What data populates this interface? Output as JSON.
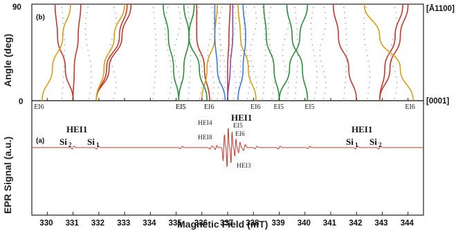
{
  "chart_data": [
    {
      "type": "line",
      "panel": "(b)",
      "xlabel": "",
      "ylabel": "Angle (deg)",
      "xlim": [
        329.4,
        344.6
      ],
      "ylim": [
        0,
        90
      ],
      "yticks": [
        0,
        90
      ],
      "top_right_label": "[Ā1100]",
      "bottom_right_label": "[0001]",
      "series": [
        {
          "color": "#c0392b",
          "points": [
            [
              331.0,
              0
            ],
            [
              330.7,
              30
            ],
            [
              330.4,
              60
            ],
            [
              330.3,
              90
            ]
          ]
        },
        {
          "color": "#c0392b",
          "points": [
            [
              331.0,
              0
            ],
            [
              331.05,
              30
            ],
            [
              331.2,
              60
            ],
            [
              331.3,
              90
            ]
          ]
        },
        {
          "color": "#c0392b",
          "points": [
            [
              331.9,
              0
            ],
            [
              332.3,
              30
            ],
            [
              332.8,
              60
            ],
            [
              333.1,
              90
            ]
          ]
        },
        {
          "color": "#c0392b",
          "points": [
            [
              331.9,
              0
            ],
            [
              332.4,
              30
            ],
            [
              332.9,
              60
            ],
            [
              333.25,
              90
            ]
          ]
        },
        {
          "color": "#c0392b",
          "points": [
            [
              336.3,
              0
            ],
            [
              336.1,
              30
            ],
            [
              335.8,
              60
            ],
            [
              335.8,
              90
            ]
          ]
        },
        {
          "color": "#c0392b",
          "points": [
            [
              337.0,
              0
            ],
            [
              337.0,
              30
            ],
            [
              337.05,
              60
            ],
            [
              337.1,
              90
            ]
          ]
        },
        {
          "color": "#c0392b",
          "points": [
            [
              342.0,
              0
            ],
            [
              341.7,
              30
            ],
            [
              341.3,
              60
            ],
            [
              341.1,
              90
            ]
          ]
        },
        {
          "color": "#c0392b",
          "points": [
            [
              342.9,
              0
            ],
            [
              343.3,
              30
            ],
            [
              343.7,
              60
            ],
            [
              344.0,
              90
            ]
          ]
        },
        {
          "color": "#c0392b",
          "points": [
            [
              342.9,
              0
            ],
            [
              343.1,
              30
            ],
            [
              343.5,
              60
            ],
            [
              343.8,
              90
            ]
          ]
        },
        {
          "color": "#d4a017",
          "points": [
            [
              329.8,
              0
            ],
            [
              330.2,
              30
            ],
            [
              330.6,
              60
            ],
            [
              330.9,
              90
            ]
          ]
        },
        {
          "color": "#d4a017",
          "points": [
            [
              331.9,
              0
            ],
            [
              332.2,
              30
            ],
            [
              332.6,
              60
            ],
            [
              333.0,
              90
            ]
          ]
        },
        {
          "color": "#d4a017",
          "points": [
            [
              336.0,
              0
            ],
            [
              336.2,
              30
            ],
            [
              336.5,
              60
            ],
            [
              336.6,
              90
            ]
          ]
        },
        {
          "color": "#d4a017",
          "points": [
            [
              338.1,
              0
            ],
            [
              337.8,
              30
            ],
            [
              337.5,
              60
            ],
            [
              337.4,
              90
            ]
          ]
        },
        {
          "color": "#d4a017",
          "points": [
            [
              344.2,
              0
            ],
            [
              343.7,
              30
            ],
            [
              342.9,
              60
            ],
            [
              342.3,
              90
            ]
          ]
        },
        {
          "color": "#2e8b3e",
          "points": [
            [
              335.1,
              0
            ],
            [
              335.3,
              30
            ],
            [
              335.5,
              60
            ],
            [
              335.7,
              90
            ]
          ]
        },
        {
          "color": "#2e8b3e",
          "points": [
            [
              335.1,
              0
            ],
            [
              334.9,
              30
            ],
            [
              334.7,
              60
            ],
            [
              334.5,
              90
            ]
          ]
        },
        {
          "color": "#2e8b3e",
          "points": [
            [
              336.2,
              0
            ],
            [
              335.9,
              30
            ],
            [
              335.5,
              60
            ],
            [
              335.3,
              90
            ]
          ]
        },
        {
          "color": "#2e8b3e",
          "points": [
            [
              339.0,
              0
            ],
            [
              338.8,
              30
            ],
            [
              338.5,
              60
            ],
            [
              338.4,
              90
            ]
          ]
        },
        {
          "color": "#2e8b3e",
          "points": [
            [
              339.0,
              0
            ],
            [
              339.4,
              30
            ],
            [
              339.8,
              60
            ],
            [
              340.1,
              90
            ]
          ]
        },
        {
          "color": "#2e8b3e",
          "points": [
            [
              340.1,
              0
            ],
            [
              339.9,
              30
            ],
            [
              339.5,
              60
            ],
            [
              339.3,
              90
            ]
          ]
        },
        {
          "color": "#3a7bd5",
          "points": [
            [
              336.9,
              0
            ],
            [
              336.6,
              30
            ],
            [
              336.5,
              60
            ],
            [
              336.5,
              90
            ]
          ]
        },
        {
          "color": "#3a7bd5",
          "points": [
            [
              337.4,
              0
            ],
            [
              337.6,
              30
            ],
            [
              337.7,
              60
            ],
            [
              337.6,
              90
            ]
          ]
        },
        {
          "color": "#8e44ad",
          "points": [
            [
              337.0,
              0
            ],
            [
              337.1,
              30
            ],
            [
              337.2,
              60
            ],
            [
              337.2,
              90
            ]
          ]
        }
      ],
      "annotations": [
        {
          "text": "EI6",
          "x": 329.7
        },
        {
          "text": "EI5",
          "x": 335.2
        },
        {
          "text": "EI5",
          "x": 335.2
        },
        {
          "text": "EI6",
          "x": 336.3
        },
        {
          "text": "EI6",
          "x": 338.1
        },
        {
          "text": "EI5",
          "x": 339.0
        },
        {
          "text": "EI5",
          "x": 340.2
        },
        {
          "text": "EI6",
          "x": 344.1
        }
      ]
    },
    {
      "type": "line",
      "panel": "(a)",
      "xlabel": "Magnetic Field (mT)",
      "ylabel": "EPR Signal (a.u.)",
      "xlim": [
        329.4,
        344.6
      ],
      "xticks": [
        330,
        331,
        332,
        333,
        334,
        335,
        336,
        337,
        338,
        339,
        340,
        341,
        342,
        343,
        344
      ],
      "series": [
        {
          "color": "#c0392b",
          "description_points": "baseline with small features near Si2/Si1 and large central multiline near 337 mT"
        }
      ],
      "annotations": [
        {
          "text": "HEI1",
          "x": 331.2
        },
        {
          "text": "Si",
          "sub": "2",
          "x": 331.0
        },
        {
          "text": "Si",
          "sub": "1",
          "x": 332.0
        },
        {
          "text": "HEI1",
          "x": 342.4
        },
        {
          "text": "Si",
          "sub": "1",
          "x": 342.0
        },
        {
          "text": "Si",
          "sub": "2",
          "x": 342.9
        },
        {
          "text": "HEI4",
          "x": 336.3
        },
        {
          "text": "HEI1",
          "x": 337.6
        },
        {
          "text": "EI5",
          "x": 337.4
        },
        {
          "text": "EI6",
          "x": 337.6
        },
        {
          "text": "HEI8",
          "x": 336.4
        },
        {
          "text": "HEI3",
          "x": 337.9
        }
      ]
    }
  ]
}
